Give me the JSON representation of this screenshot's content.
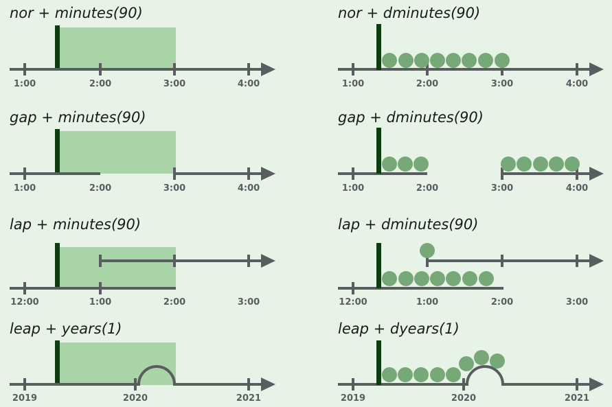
{
  "colors": {
    "background": "#e8f3e8",
    "axis": "#5a5d5f",
    "marker": "#0d3d10",
    "span_fill": "#a8d4a8",
    "dot_fill": "#77a877"
  },
  "panels": [
    {
      "id": "nor-minutes",
      "title": "nor + minutes(90)",
      "ticks": [
        "1:00",
        "2:00",
        "3:00",
        "4:00"
      ]
    },
    {
      "id": "nor-dminutes",
      "title": "nor + dminutes(90)",
      "ticks": [
        "1:00",
        "2:00",
        "3:00",
        "4:00"
      ]
    },
    {
      "id": "gap-minutes",
      "title": "gap + minutes(90)",
      "ticks": [
        "1:00",
        "2:00",
        "3:00",
        "4:00"
      ]
    },
    {
      "id": "gap-dminutes",
      "title": "gap + dminutes(90)",
      "ticks": [
        "1:00",
        "2:00",
        "3:00",
        "4:00"
      ]
    },
    {
      "id": "lap-minutes",
      "title": "lap + minutes(90)",
      "ticks": [
        "12:00",
        "1:00",
        "2:00",
        "3:00"
      ]
    },
    {
      "id": "lap-dminutes",
      "title": "lap + dminutes(90)",
      "ticks": [
        "12:00",
        "1:00",
        "2:00",
        "3:00"
      ]
    },
    {
      "id": "leap-years",
      "title": "leap + years(1)",
      "ticks": [
        "2019",
        "2020",
        "2021"
      ]
    },
    {
      "id": "leap-dyears",
      "title": "leap + dyears(1)",
      "ticks": [
        "2019",
        "2020",
        "2021"
      ]
    }
  ]
}
